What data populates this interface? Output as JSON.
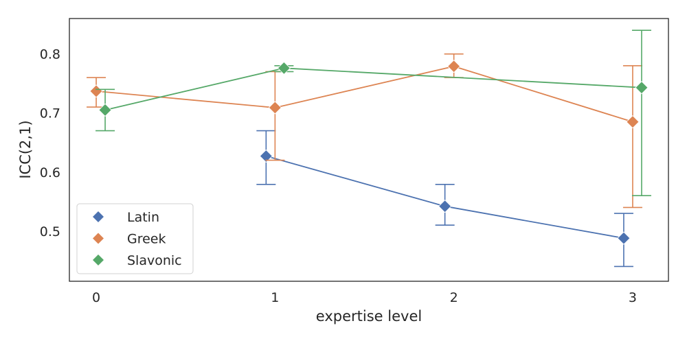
{
  "chart_data": {
    "type": "line",
    "title": "",
    "xlabel": "expertise level",
    "ylabel": "ICC(2,1)",
    "xlim": [
      -0.15,
      3.2
    ],
    "ylim": [
      0.415,
      0.86
    ],
    "x_ticks": [
      0,
      1,
      2,
      3
    ],
    "x_tick_labels": [
      "0",
      "1",
      "2",
      "3"
    ],
    "y_ticks": [
      0.5,
      0.6,
      0.7,
      0.8
    ],
    "y_tick_labels": [
      "0.5",
      "0.6",
      "0.7",
      "0.8"
    ],
    "grid": false,
    "legend_position": "lower-left",
    "series": [
      {
        "name": "Latin",
        "color": "#4c72b0",
        "x": [
          0.95,
          1.95,
          2.95
        ],
        "y": [
          0.627,
          0.542,
          0.488
        ],
        "err_low": [
          0.579,
          0.51,
          0.44
        ],
        "err_high": [
          0.67,
          0.579,
          0.53
        ]
      },
      {
        "name": "Greek",
        "color": "#dd8452",
        "x": [
          0.0,
          1.0,
          2.0,
          3.0
        ],
        "y": [
          0.737,
          0.709,
          0.779,
          0.685
        ],
        "err_low": [
          0.71,
          0.62,
          0.76,
          0.54
        ],
        "err_high": [
          0.76,
          0.77,
          0.8,
          0.78
        ]
      },
      {
        "name": "Slavonic",
        "color": "#55a868",
        "x": [
          0.05,
          1.05,
          2.05,
          3.05
        ],
        "y": [
          0.705,
          0.776,
          null,
          0.743
        ],
        "err_low": [
          0.67,
          0.77,
          null,
          0.56
        ],
        "err_high": [
          0.74,
          0.78,
          null,
          0.84
        ]
      }
    ]
  }
}
